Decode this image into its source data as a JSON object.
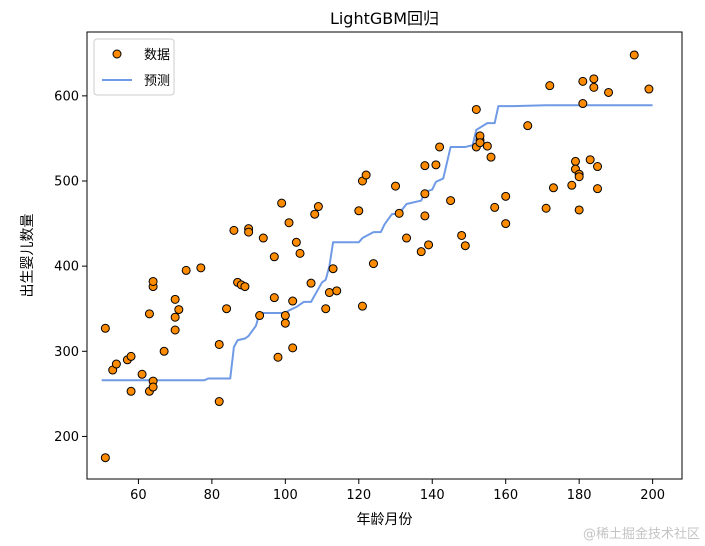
{
  "chart_data": {
    "type": "scatter",
    "title": "LightGBM回归",
    "xlabel": "年龄月份",
    "ylabel": "出生婴儿数量",
    "xlim": [
      46,
      208
    ],
    "ylim": [
      150,
      675
    ],
    "xticks": [
      60,
      80,
      100,
      120,
      140,
      160,
      180,
      200
    ],
    "yticks": [
      200,
      300,
      400,
      500,
      600
    ],
    "legend_position": "upper-left",
    "colors": {
      "scatter_fill": "#ff8c00",
      "scatter_edge": "#000000",
      "line": "#6f9ae6"
    },
    "series": [
      {
        "name": "数据",
        "type": "scatter",
        "x": [
          51,
          51,
          53,
          54,
          57,
          58,
          58,
          61,
          63,
          63,
          64,
          64,
          64,
          64,
          67,
          70,
          70,
          70,
          71,
          73,
          77,
          82,
          82,
          84,
          86,
          87,
          88,
          89,
          90,
          90,
          93,
          94,
          97,
          97,
          98,
          99,
          100,
          100,
          101,
          102,
          102,
          103,
          104,
          107,
          108,
          109,
          111,
          112,
          113,
          114,
          120,
          121,
          121,
          122,
          124,
          130,
          131,
          133,
          137,
          138,
          138,
          138,
          139,
          141,
          142,
          145,
          148,
          149,
          152,
          152,
          153,
          153,
          153,
          155,
          156,
          157,
          160,
          160,
          166,
          171,
          172,
          173,
          178,
          179,
          179,
          180,
          180,
          180,
          181,
          181,
          183,
          184,
          184,
          185,
          185,
          188,
          195,
          199
        ],
        "y": [
          327,
          175,
          278,
          285,
          290,
          294,
          253,
          273,
          344,
          253,
          376,
          382,
          265,
          258,
          300,
          325,
          340,
          361,
          349,
          395,
          398,
          308,
          241,
          350,
          442,
          381,
          378,
          376,
          444,
          440,
          342,
          433,
          411,
          363,
          293,
          474,
          342,
          333,
          451,
          304,
          359,
          428,
          415,
          380,
          461,
          470,
          350,
          369,
          397,
          371,
          465,
          353,
          500,
          507,
          403,
          494,
          462,
          433,
          417,
          485,
          459,
          518,
          425,
          519,
          540,
          477,
          436,
          424,
          584,
          540,
          548,
          553,
          545,
          541,
          528,
          469,
          450,
          482,
          565,
          468,
          612,
          492,
          495,
          523,
          514,
          508,
          466,
          505,
          591,
          617,
          525,
          620,
          610,
          517,
          491,
          604,
          648,
          608
        ]
      },
      {
        "name": "预测",
        "type": "line",
        "x": [
          50,
          78,
          79,
          85,
          86,
          87,
          89,
          90,
          92,
          93,
          100,
          101,
          103,
          105,
          107,
          110,
          111,
          112,
          113,
          120,
          121,
          124,
          126,
          127,
          129,
          131,
          133,
          137,
          138,
          140,
          141,
          143,
          145,
          149,
          151,
          152,
          155,
          157,
          158,
          160,
          162,
          171,
          175,
          200
        ],
        "y": [
          266,
          266,
          268,
          268,
          305,
          313,
          315,
          318,
          330,
          345,
          345,
          348,
          352,
          358,
          358,
          381,
          384,
          400,
          428,
          428,
          433,
          440,
          440,
          449,
          461,
          462,
          473,
          477,
          487,
          490,
          499,
          503,
          540,
          540,
          542,
          560,
          568,
          568,
          588,
          588,
          588,
          589,
          589,
          589
        ]
      }
    ],
    "watermark": "@稀土掘金技术社区"
  }
}
